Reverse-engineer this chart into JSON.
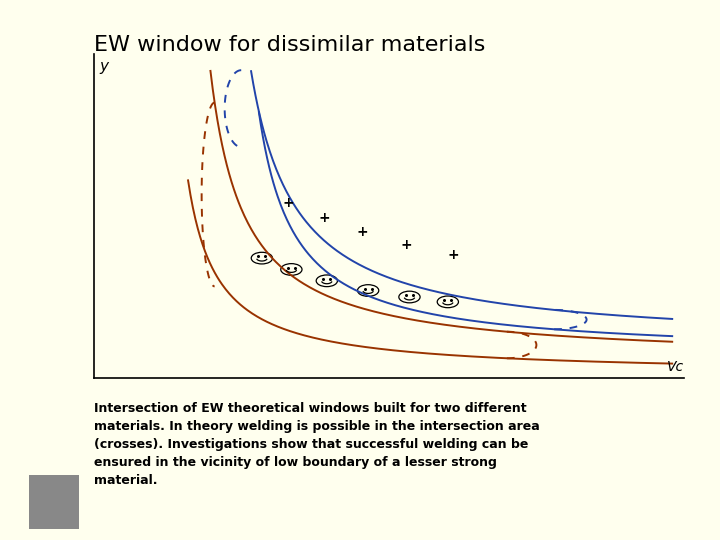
{
  "title": "EW window for dissimilar materials",
  "bg_color": "#FFFFEE",
  "xlabel": "Vc",
  "ylabel": "y",
  "text_block": "Intersection of EW theoretical windows built for two different\nmaterials. In theory welding is possible in the intersection area\n(crosses). Investigations show that successful welding can be\nensured in the vicinity of low boundary of a lesser strong\nmaterial.",
  "blue_color": "#2244AA",
  "red_color": "#993300"
}
